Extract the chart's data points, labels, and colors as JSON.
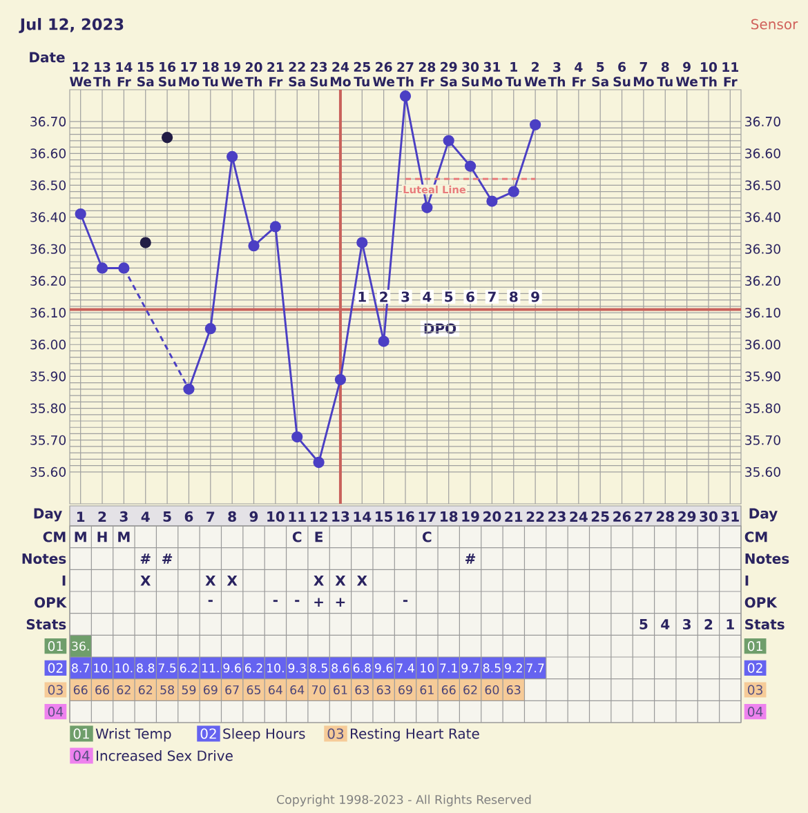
{
  "chart_data": [
    {
      "type": "line",
      "title": "Jul 12, 2023",
      "subtitle": "Sensor",
      "xlabel": "Date",
      "categories": [
        "12 We",
        "13 Th",
        "14 Fr",
        "15 Sa",
        "16 Su",
        "17 Mo",
        "18 Tu",
        "19 We",
        "20 Th",
        "21 Fr",
        "22 Sa",
        "23 Su",
        "24 Mo",
        "25 Tu",
        "26 We",
        "27 Th",
        "28 Fr",
        "29 Sa",
        "30 Su",
        "31 Mo",
        "1 Tu",
        "2 We",
        "3 Th",
        "4 Fr",
        "5 Sa",
        "6 Su",
        "7 Mo",
        "8 Tu",
        "9 We",
        "10 Th",
        "11 Fr"
      ],
      "series": [
        {
          "color": "#4b3fc4",
          "marker": "circle",
          "line_style": "solid",
          "values": [
            36.41,
            36.24,
            36.24,
            null,
            null,
            null,
            null,
            null,
            null,
            null,
            null,
            null,
            null,
            null,
            null,
            null,
            null,
            null,
            null,
            null,
            null,
            null,
            null,
            null,
            null,
            null,
            null,
            null,
            null,
            null,
            null
          ]
        },
        {
          "color": "#4b3fc4",
          "line_style": "dashed",
          "values": [
            null,
            null,
            36.24,
            null,
            null,
            35.86,
            null,
            null,
            null,
            null,
            null,
            null,
            null,
            null,
            null,
            null,
            null,
            null,
            null,
            null,
            null,
            null,
            null,
            null,
            null,
            null,
            null,
            null,
            null,
            null,
            null
          ]
        },
        {
          "color": "#4b3fc4",
          "marker": "circle",
          "line_style": "solid",
          "values": [
            null,
            null,
            null,
            null,
            null,
            35.86,
            36.05,
            36.59,
            36.31,
            36.37,
            35.71,
            35.63,
            35.89,
            36.32,
            36.01,
            36.78,
            36.43,
            36.64,
            36.56,
            36.45,
            36.48,
            36.69,
            null,
            null,
            null,
            null,
            null,
            null,
            null,
            null,
            null
          ]
        },
        {
          "type": "scatter",
          "color": "#221d45",
          "marker": "circle",
          "values": [
            null,
            null,
            null,
            36.32,
            36.65,
            null,
            null,
            null,
            null,
            null,
            null,
            null,
            null,
            null,
            null,
            null,
            null,
            null,
            null,
            null,
            null,
            null,
            null,
            null,
            null,
            null,
            null,
            null,
            null,
            null,
            null
          ]
        },
        {
          "name": "Luteal Line",
          "color": "#e87c7c",
          "marker": "none",
          "line_style": "dashed",
          "values": [
            null,
            null,
            null,
            null,
            null,
            null,
            null,
            null,
            null,
            null,
            null,
            null,
            null,
            null,
            null,
            36.52,
            36.52,
            36.52,
            36.52,
            36.52,
            36.52,
            36.52,
            null,
            null,
            null,
            null,
            null,
            null,
            null,
            null,
            null
          ]
        }
      ],
      "ylim": [
        35.5,
        36.8
      ],
      "yticks": [
        {
          "value": 35.6,
          "label": "35.60"
        },
        {
          "value": 35.7,
          "label": "35.70"
        },
        {
          "value": 35.8,
          "label": "35.80"
        },
        {
          "value": 35.9,
          "label": "35.90"
        },
        {
          "value": 36.0,
          "label": "36.00"
        },
        {
          "value": 36.1,
          "label": "36.10"
        },
        {
          "value": 36.2,
          "label": "36.20"
        },
        {
          "value": 36.3,
          "label": "36.30"
        },
        {
          "value": 36.4,
          "label": "36.40"
        },
        {
          "value": 36.5,
          "label": "36.50"
        },
        {
          "value": 36.6,
          "label": "36.60"
        },
        {
          "value": 36.7,
          "label": "36.70"
        }
      ],
      "y2lim": [
        35.5,
        36.8
      ],
      "y2ticks": [
        {
          "value": 35.6,
          "label": "35.60"
        },
        {
          "value": 35.7,
          "label": "35.70"
        },
        {
          "value": 35.8,
          "label": "35.80"
        },
        {
          "value": 35.9,
          "label": "35.90"
        },
        {
          "value": 36.0,
          "label": "36.00"
        },
        {
          "value": 36.1,
          "label": "36.10"
        },
        {
          "value": 36.2,
          "label": "36.20"
        },
        {
          "value": 36.3,
          "label": "36.30"
        },
        {
          "value": 36.4,
          "label": "36.40"
        },
        {
          "value": 36.5,
          "label": "36.50"
        },
        {
          "value": 36.6,
          "label": "36.60"
        },
        {
          "value": 36.7,
          "label": "36.70"
        }
      ],
      "grid": true,
      "ref_lines": [
        {
          "axis": "y",
          "value": 36.11,
          "color": "#c9615b"
        },
        {
          "axis": "x",
          "value": "24 Mo",
          "color": "#c9615b"
        }
      ],
      "annotations": [
        {
          "text": "1",
          "x": "25 Tu",
          "y": 36.15
        },
        {
          "text": "2",
          "x": "26 We",
          "y": 36.15
        },
        {
          "text": "3",
          "x": "27 Th",
          "y": 36.15
        },
        {
          "text": "4",
          "x": "28 Fr",
          "y": 36.15
        },
        {
          "text": "5",
          "x": "29 Sa",
          "y": 36.15
        },
        {
          "text": "6",
          "x": "30 Su",
          "y": 36.15
        },
        {
          "text": "7",
          "x": "31 Mo",
          "y": 36.15
        },
        {
          "text": "8",
          "x": "1 Tu",
          "y": 36.15
        },
        {
          "text": "9",
          "x": "2 We",
          "y": 36.15
        },
        "DPO"
      ]
    },
    {
      "type": "heatmap",
      "xlabel": "Day",
      "categories": [
        "1",
        "2",
        "3",
        "4",
        "5",
        "6",
        "7",
        "8",
        "9",
        "10",
        "11",
        "12",
        "13",
        "14",
        "15",
        "16",
        "17",
        "18",
        "19",
        "20",
        "21",
        "22",
        "23",
        "24",
        "25",
        "26",
        "27",
        "28",
        "29",
        "30",
        "31"
      ],
      "y_categories": [
        "CM",
        "Notes",
        "I",
        "OPK",
        "Stats",
        "01",
        "02",
        "03",
        "04"
      ],
      "y2_categories": [
        "CM",
        "Notes",
        "I",
        "OPK",
        "Stats",
        "01",
        "02",
        "03",
        "04"
      ],
      "colors": [
        null,
        null,
        null,
        null,
        null,
        "#6f9e6b",
        "#6563f0",
        "#f6cb98",
        "#ee82ee"
      ],
      "cells": [
        [
          null,
          null,
          null,
          null,
          null,
          null,
          null,
          null,
          null,
          null,
          null,
          null,
          null,
          null,
          null,
          null,
          null,
          null,
          null,
          null,
          null,
          null,
          null,
          null,
          null,
          null,
          null,
          null,
          null,
          null,
          null
        ],
        [
          null,
          null,
          null,
          null,
          null,
          null,
          null,
          null,
          null,
          null,
          null,
          null,
          null,
          null,
          null,
          null,
          null,
          null,
          null,
          null,
          null,
          null,
          null,
          null,
          null,
          null,
          null,
          null,
          null,
          null,
          null
        ],
        [
          null,
          null,
          null,
          null,
          null,
          null,
          null,
          null,
          null,
          null,
          null,
          null,
          null,
          null,
          null,
          null,
          null,
          null,
          null,
          null,
          null,
          null,
          null,
          null,
          null,
          null,
          null,
          null,
          null,
          null,
          null
        ],
        [
          null,
          null,
          null,
          null,
          null,
          null,
          null,
          null,
          null,
          null,
          null,
          null,
          null,
          null,
          null,
          null,
          null,
          null,
          null,
          null,
          null,
          null,
          null,
          null,
          null,
          null,
          null,
          null,
          null,
          null,
          null
        ],
        [
          null,
          null,
          null,
          null,
          null,
          null,
          null,
          null,
          null,
          null,
          null,
          null,
          null,
          null,
          null,
          null,
          null,
          null,
          null,
          null,
          null,
          null,
          null,
          null,
          null,
          null,
          null,
          null,
          null,
          null,
          null
        ],
        [
          null,
          null,
          null,
          null,
          null,
          null,
          null,
          null,
          null,
          null,
          null,
          null,
          null,
          null,
          null,
          null,
          null,
          null,
          null,
          null,
          null,
          null,
          null,
          null,
          null,
          null,
          null,
          null,
          null,
          null,
          null
        ],
        [
          null,
          null,
          null,
          null,
          null,
          null,
          null,
          null,
          null,
          null,
          null,
          null,
          null,
          null,
          null,
          null,
          null,
          null,
          null,
          null,
          null,
          null,
          null,
          null,
          null,
          null,
          null,
          null,
          null,
          null,
          null
        ],
        [
          null,
          null,
          null,
          null,
          null,
          null,
          null,
          null,
          null,
          null,
          null,
          null,
          null,
          null,
          null,
          null,
          null,
          null,
          null,
          null,
          null,
          null,
          null,
          null,
          null,
          null,
          null,
          null,
          null,
          null,
          null
        ],
        [
          null,
          null,
          null,
          null,
          null,
          null,
          null,
          null,
          null,
          null,
          null,
          null,
          null,
          null,
          null,
          null,
          null,
          null,
          null,
          null,
          null,
          null,
          null,
          null,
          null,
          null,
          null,
          null,
          null,
          null,
          null
        ]
      ],
      "cell_labels": [
        [
          "M",
          "H",
          "M",
          null,
          null,
          null,
          null,
          null,
          null,
          null,
          "C",
          "E",
          null,
          null,
          null,
          null,
          "C",
          null,
          null,
          null,
          null,
          null,
          null,
          null,
          null,
          null,
          null,
          null,
          null,
          null,
          null
        ],
        [
          null,
          null,
          null,
          "#",
          "#",
          null,
          null,
          null,
          null,
          null,
          null,
          null,
          null,
          null,
          null,
          null,
          null,
          null,
          "#",
          null,
          null,
          null,
          null,
          null,
          null,
          null,
          null,
          null,
          null,
          null,
          null
        ],
        [
          null,
          null,
          null,
          "X",
          null,
          null,
          "X",
          "X",
          null,
          null,
          null,
          "X",
          "X",
          "X",
          null,
          null,
          null,
          null,
          null,
          null,
          null,
          null,
          null,
          null,
          null,
          null,
          null,
          null,
          null,
          null,
          null
        ],
        [
          null,
          null,
          null,
          null,
          null,
          null,
          "-",
          null,
          null,
          "-",
          "-",
          "+",
          "+",
          null,
          null,
          "-",
          null,
          null,
          null,
          null,
          null,
          null,
          null,
          null,
          null,
          null,
          null,
          null,
          null,
          null,
          null
        ],
        [
          null,
          null,
          null,
          null,
          null,
          null,
          null,
          null,
          null,
          null,
          null,
          null,
          null,
          null,
          null,
          null,
          null,
          null,
          null,
          null,
          null,
          null,
          null,
          null,
          null,
          null,
          "5",
          "4",
          "3",
          "2",
          "1"
        ],
        [
          "36.",
          null,
          null,
          null,
          null,
          null,
          null,
          null,
          null,
          null,
          null,
          null,
          null,
          null,
          null,
          null,
          null,
          null,
          null,
          null,
          null,
          null,
          null,
          null,
          null,
          null,
          null,
          null,
          null,
          null,
          null
        ],
        [
          "8.7",
          "10.",
          "10.",
          "8.8",
          "7.5",
          "6.2",
          "11.",
          "9.6",
          "6.2",
          "10.",
          "9.3",
          "8.5",
          "8.6",
          "6.8",
          "9.6",
          "7.4",
          "10",
          "7.1",
          "9.7",
          "8.5",
          "9.2",
          "7.7",
          null,
          null,
          null,
          null,
          null,
          null,
          null,
          null,
          null
        ],
        [
          "66",
          "66",
          "62",
          "62",
          "58",
          "59",
          "69",
          "67",
          "65",
          "64",
          "64",
          "70",
          "61",
          "63",
          "63",
          "69",
          "61",
          "66",
          "62",
          "60",
          "63",
          null,
          null,
          null,
          null,
          null,
          null,
          null,
          null,
          null,
          null
        ],
        [
          null,
          null,
          null,
          null,
          null,
          null,
          null,
          null,
          null,
          null,
          null,
          null,
          null,
          null,
          null,
          null,
          null,
          null,
          null,
          null,
          null,
          null,
          null,
          null,
          null,
          null,
          null,
          null,
          null,
          null,
          null
        ]
      ],
      "annotations": [
        "Wrist Temp",
        "Sleep Hours",
        "Resting Heart Rate",
        "Increased Sex Drive",
        "Copyright 1998-2023 - All Rights Reserved"
      ]
    }
  ]
}
